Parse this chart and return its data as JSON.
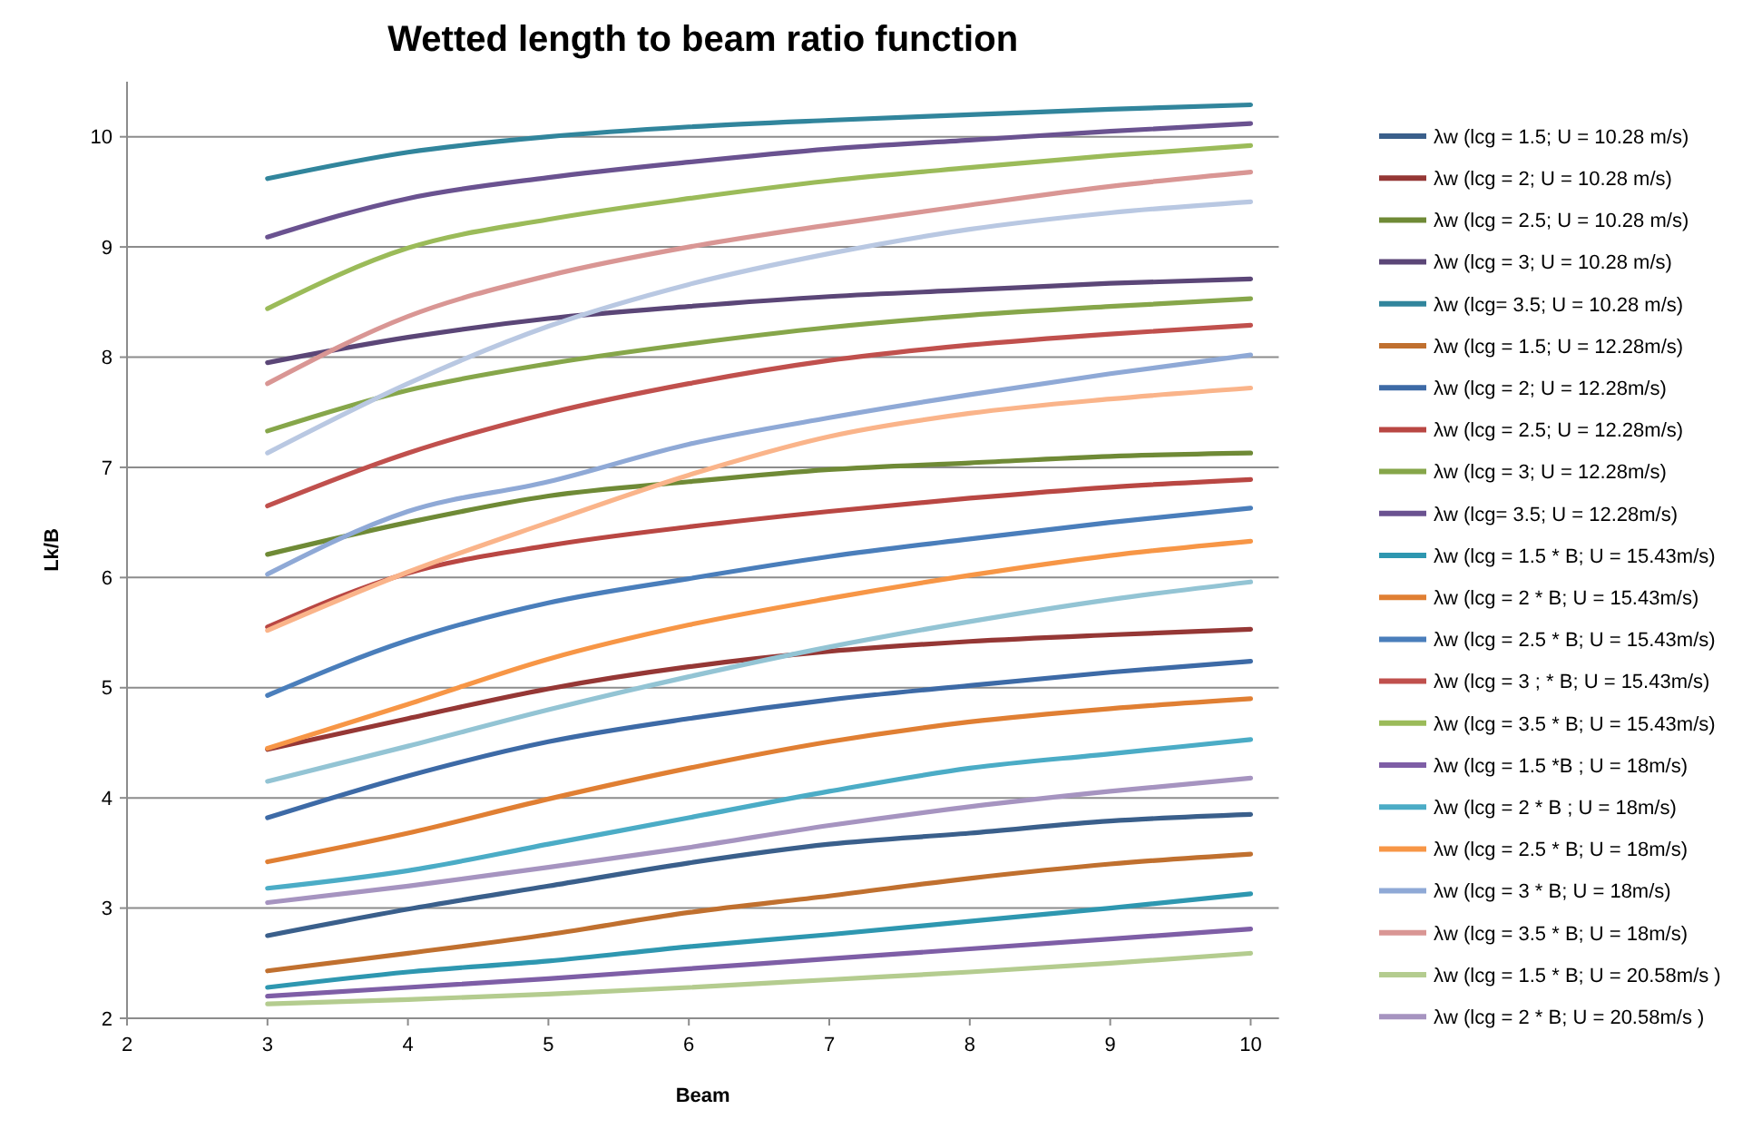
{
  "chart_data": {
    "type": "line",
    "title": "Wetted length to beam ratio function",
    "xlabel": "Beam",
    "ylabel": "Lk/B",
    "x": [
      3,
      4,
      5,
      6,
      7,
      8,
      9,
      10
    ],
    "xlim": [
      2,
      10.2
    ],
    "xticks": [
      2,
      3,
      4,
      5,
      6,
      7,
      8,
      9,
      10
    ],
    "ylim": [
      2,
      10.5
    ],
    "yticks": [
      2,
      3,
      4,
      5,
      6,
      7,
      8,
      9,
      10
    ],
    "grid": "y",
    "legend": "right",
    "marker": "none",
    "line_style": "solid",
    "series": [
      {
        "name": "λw (lcg = 1.5; U = 10.28 m/s)",
        "color": "#3a5f8b",
        "values": [
          2.75,
          2.99,
          3.2,
          3.41,
          3.58,
          3.68,
          3.79,
          3.85
        ]
      },
      {
        "name": "λw (lcg = 2; U = 10.28 m/s)",
        "color": "#953735",
        "values": [
          4.44,
          4.72,
          4.99,
          5.19,
          5.33,
          5.42,
          5.48,
          5.53
        ]
      },
      {
        "name": "λw (lcg = 2.5; U = 10.28 m/s)",
        "color": "#6f8a36",
        "values": [
          6.21,
          6.5,
          6.74,
          6.87,
          6.98,
          7.04,
          7.1,
          7.13
        ]
      },
      {
        "name": "λw (lcg = 3; U = 10.28 m/s)",
        "color": "#5b4677",
        "values": [
          7.95,
          8.18,
          8.35,
          8.46,
          8.55,
          8.61,
          8.67,
          8.71
        ]
      },
      {
        "name": "λw (lcg= 3.5; U = 10.28 m/s)",
        "color": "#31859c",
        "values": [
          9.62,
          9.86,
          10.0,
          10.09,
          10.15,
          10.2,
          10.25,
          10.29
        ]
      },
      {
        "name": "λw (lcg = 1.5; U = 12.28m/s)",
        "color": "#c0702f",
        "values": [
          2.43,
          2.59,
          2.76,
          2.96,
          3.11,
          3.27,
          3.4,
          3.49
        ]
      },
      {
        "name": "λw (lcg = 2; U = 12.28m/s)",
        "color": "#3d6aa6",
        "values": [
          3.82,
          4.2,
          4.51,
          4.72,
          4.89,
          5.02,
          5.14,
          5.24
        ]
      },
      {
        "name": "λw (lcg = 2.5; U = 12.28m/s)",
        "color": "#b94743",
        "values": [
          5.55,
          6.04,
          6.29,
          6.46,
          6.6,
          6.72,
          6.82,
          6.89
        ]
      },
      {
        "name": "λw (lcg = 3; U = 12.28m/s)",
        "color": "#86a64a",
        "values": [
          7.33,
          7.7,
          7.94,
          8.12,
          8.27,
          8.38,
          8.46,
          8.53
        ]
      },
      {
        "name": "λw (lcg= 3.5; U = 12.28m/s)",
        "color": "#6a5290",
        "values": [
          9.09,
          9.44,
          9.63,
          9.77,
          9.89,
          9.97,
          10.05,
          10.12
        ]
      },
      {
        "name": "λw (lcg = 1.5 * B; U = 15.43m/s)",
        "color": "#2e97b0",
        "values": [
          2.28,
          2.42,
          2.52,
          2.65,
          2.76,
          2.88,
          3.0,
          3.13
        ]
      },
      {
        "name": "λw (lcg = 2 * B; U = 15.43m/s)",
        "color": "#e07f33",
        "values": [
          3.42,
          3.68,
          3.99,
          4.27,
          4.51,
          4.69,
          4.81,
          4.9
        ]
      },
      {
        "name": "λw (lcg = 2.5 * B; U = 15.43m/s)",
        "color": "#4a7ebb",
        "values": [
          4.93,
          5.43,
          5.77,
          5.99,
          6.19,
          6.35,
          6.5,
          6.63
        ]
      },
      {
        "name": "λw (lcg = 3 ; * B; U = 15.43m/s)",
        "color": "#c0504d",
        "values": [
          6.65,
          7.13,
          7.49,
          7.76,
          7.97,
          8.11,
          8.21,
          8.29
        ]
      },
      {
        "name": "λw (lcg = 3.5 * B; U = 15.43m/s)",
        "color": "#9bbb59",
        "values": [
          8.44,
          8.99,
          9.25,
          9.44,
          9.6,
          9.72,
          9.83,
          9.92
        ]
      },
      {
        "name": "λw (lcg = 1.5 *B ; U = 18m/s)",
        "color": "#7e5ea6",
        "values": [
          2.2,
          2.28,
          2.36,
          2.45,
          2.54,
          2.63,
          2.72,
          2.81
        ]
      },
      {
        "name": "λw (lcg = 2 * B ; U = 18m/s)",
        "color": "#4bacc6",
        "values": [
          3.18,
          3.34,
          3.58,
          3.82,
          4.06,
          4.27,
          4.4,
          4.53
        ]
      },
      {
        "name": "λw (lcg = 2.5 * B; U = 18m/s)",
        "color": "#f79646",
        "values": [
          4.45,
          4.85,
          5.26,
          5.57,
          5.81,
          6.02,
          6.2,
          6.33
        ]
      },
      {
        "name": "λw (lcg = 3 * B; U = 18m/s)",
        "color": "#8fa9d6",
        "values": [
          6.03,
          6.6,
          6.87,
          7.21,
          7.45,
          7.66,
          7.85,
          8.02
        ]
      },
      {
        "name": "λw (lcg = 3.5 * B; U = 18m/s)",
        "color": "#d99694",
        "values": [
          7.76,
          8.37,
          8.74,
          9.0,
          9.2,
          9.38,
          9.55,
          9.68
        ]
      },
      {
        "name": "λw (lcg = 1.5 * B; U = 20.58m/s )",
        "color": "#b4cc8f",
        "values": [
          2.13,
          2.17,
          2.22,
          2.28,
          2.35,
          2.42,
          2.5,
          2.59
        ]
      },
      {
        "name": "λw (lcg = 2 * B; U = 20.58m/s )",
        "color": "#a694c0",
        "values": [
          3.05,
          3.2,
          3.37,
          3.55,
          3.75,
          3.92,
          4.06,
          4.18
        ]
      },
      {
        "color": "#93c4d4",
        "values": [
          4.15,
          4.47,
          4.8,
          5.1,
          5.37,
          5.6,
          5.8,
          5.96
        ]
      },
      {
        "color": "#fab48a",
        "values": [
          5.52,
          6.05,
          6.5,
          6.93,
          7.28,
          7.49,
          7.62,
          7.72
        ]
      },
      {
        "color": "#b9c8e2",
        "values": [
          7.13,
          7.76,
          8.28,
          8.66,
          8.94,
          9.16,
          9.31,
          9.41
        ]
      }
    ]
  }
}
